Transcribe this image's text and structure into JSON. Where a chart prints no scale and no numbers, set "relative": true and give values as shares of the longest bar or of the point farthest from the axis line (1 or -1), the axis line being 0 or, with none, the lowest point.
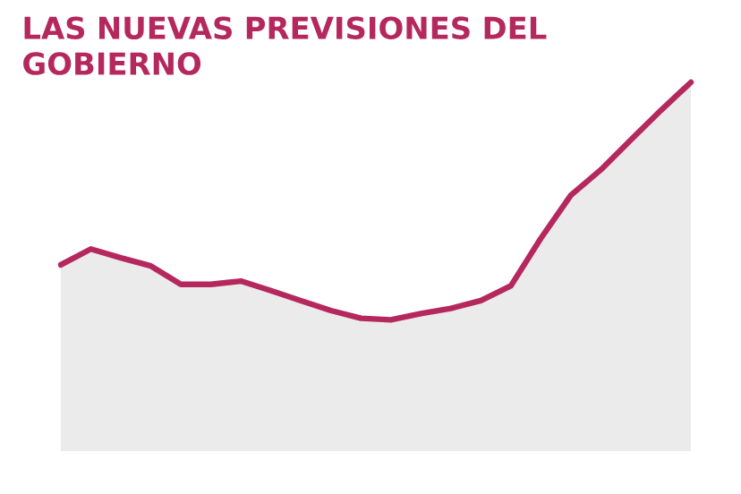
{
  "chart_data": {
    "type": "area",
    "title": "LAS NUEVAS PREVISIONES DEL GOBIERNO",
    "relative": true,
    "categories": [
      null,
      null,
      null,
      null,
      null,
      null,
      null,
      null,
      null,
      null,
      null,
      null,
      null,
      null,
      null,
      null,
      null,
      null,
      null,
      null,
      null,
      null
    ],
    "series": [
      {
        "color": "#b5285e",
        "values": [
          0.505,
          0.548,
          0.524,
          0.502,
          0.452,
          0.452,
          0.461,
          0.435,
          0.408,
          0.381,
          0.36,
          0.356,
          0.373,
          0.387,
          0.408,
          0.448,
          0.577,
          0.694,
          0.763,
          0.844,
          0.924,
          1
        ]
      }
    ]
  }
}
